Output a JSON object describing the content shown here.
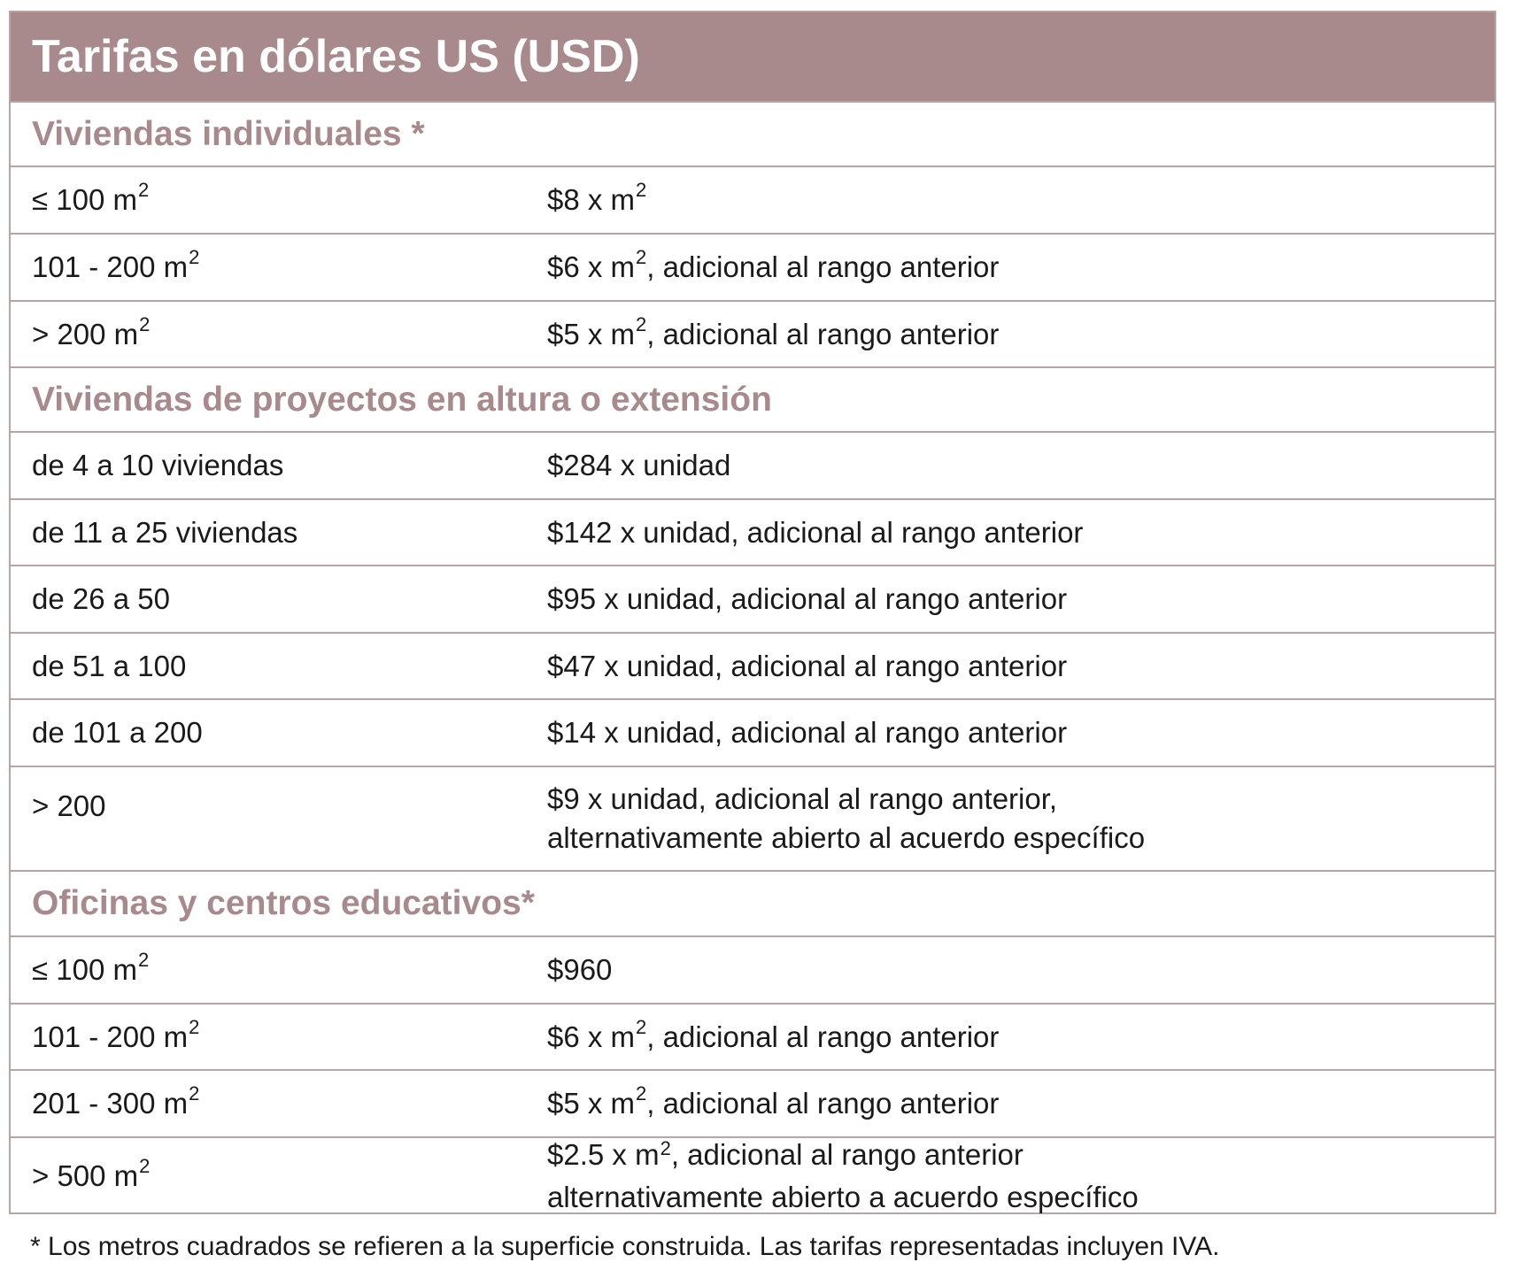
{
  "title": "Tarifas en dólares US (USD)",
  "sections": [
    {
      "heading": "Viviendas individuales *",
      "rows": [
        {
          "range": "≤ 100 m",
          "range_sup": "2",
          "rate": "$8 x m",
          "rate_sup": "2",
          "rate_rest": ""
        },
        {
          "range": "101 - 200 m",
          "range_sup": "2",
          "rate": "$6 x m",
          "rate_sup": "2",
          "rate_rest": ", adicional al rango anterior"
        },
        {
          "range": "> 200 m",
          "range_sup": "2",
          "rate": "$5 x m",
          "rate_sup": "2",
          "rate_rest": ", adicional al rango anterior"
        }
      ]
    },
    {
      "heading": "Viviendas de proyectos en altura o extensión",
      "rows": [
        {
          "range": "de 4 a 10 viviendas",
          "rate": "$284 x unidad"
        },
        {
          "range": "de 11 a 25 viviendas",
          "rate": "$142 x unidad, adicional al rango anterior"
        },
        {
          "range": "de 26 a 50",
          "rate": "$95 x unidad, adicional al rango anterior"
        },
        {
          "range": "de 51 a 100",
          "rate": "$47 x unidad, adicional al rango anterior"
        },
        {
          "range": "de 101 a 200",
          "rate": "$14 x unidad, adicional al rango anterior"
        },
        {
          "range": "> 200",
          "rate_line1": "$9 x unidad, adicional al rango anterior,",
          "rate_line2": "alternativamente abierto al acuerdo específico"
        }
      ]
    },
    {
      "heading": "Oficinas y centros educativos*",
      "rows": [
        {
          "range": "≤ 100 m",
          "range_sup": "2",
          "rate": "$960"
        },
        {
          "range": "101 - 200 m",
          "range_sup": "2",
          "rate": "$6 x m",
          "rate_sup": "2",
          "rate_rest": ", adicional al rango anterior"
        },
        {
          "range": "201 - 300 m",
          "range_sup": "2",
          "rate": "$5 x m",
          "rate_sup": "2",
          "rate_rest": ", adicional al rango anterior"
        },
        {
          "range": "> 500 m",
          "range_sup": "2",
          "rate_line1": "$2.5 x m",
          "rate_line1_sup": "2",
          "rate_line1_rest": ", adicional al rango anterior",
          "rate_line2": "alternativamente abierto a acuerdo específico"
        }
      ]
    }
  ],
  "footnote": "* Los metros cuadrados se refieren a la superficie construida. Las tarifas representadas incluyen IVA."
}
